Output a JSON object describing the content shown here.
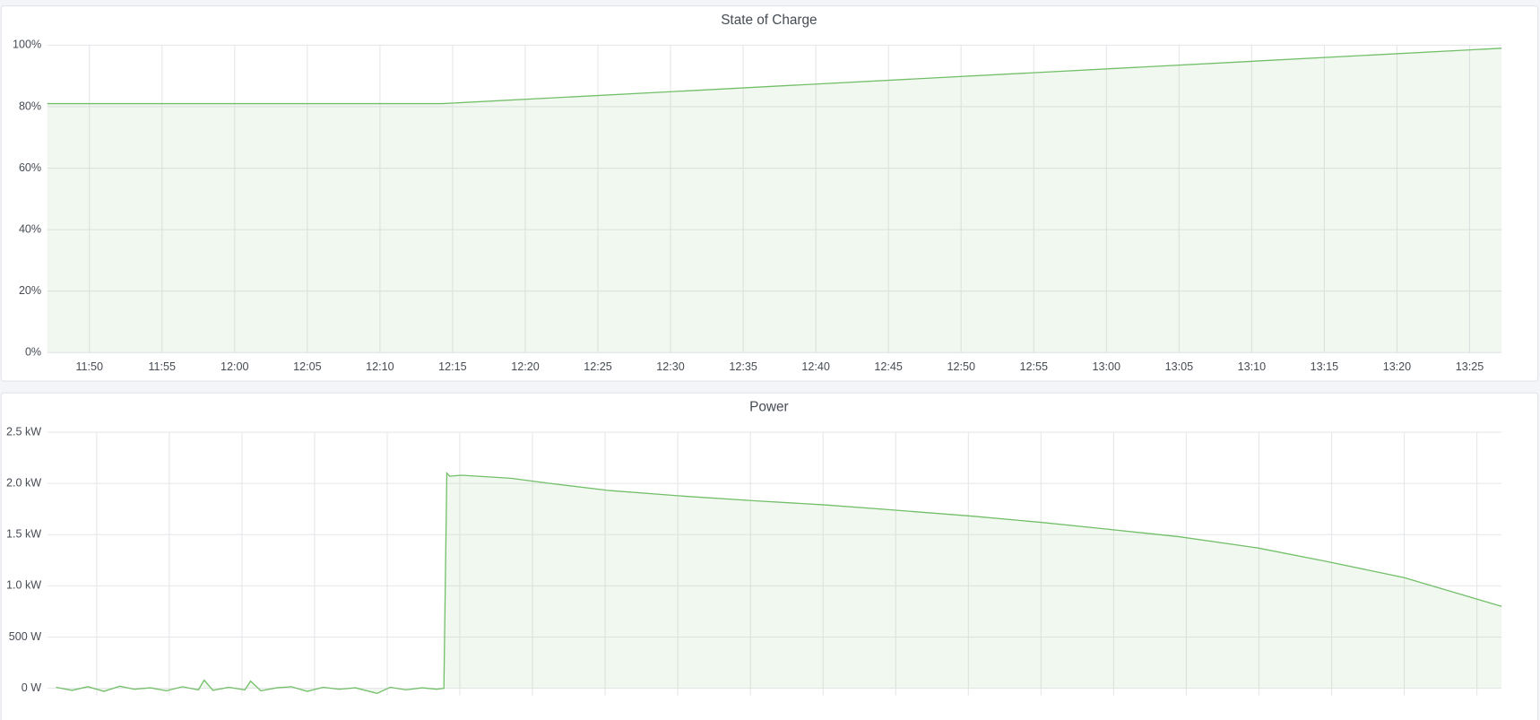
{
  "chart_data": [
    {
      "type": "line",
      "title": "State of Charge",
      "x": [
        707.1,
        734.3,
        807.2
      ],
      "series": [
        {
          "color": "#73bf69",
          "values": [
            81,
            81,
            99
          ]
        }
      ],
      "xlim": [
        707.1,
        807.2
      ],
      "xticks": [
        {
          "value": 710,
          "label": "11:50"
        },
        {
          "value": 715,
          "label": "11:55"
        },
        {
          "value": 720,
          "label": "12:00"
        },
        {
          "value": 725,
          "label": "12:05"
        },
        {
          "value": 730,
          "label": "12:10"
        },
        {
          "value": 735,
          "label": "12:15"
        },
        {
          "value": 740,
          "label": "12:20"
        },
        {
          "value": 745,
          "label": "12:25"
        },
        {
          "value": 750,
          "label": "12:30"
        },
        {
          "value": 755,
          "label": "12:35"
        },
        {
          "value": 760,
          "label": "12:40"
        },
        {
          "value": 765,
          "label": "12:45"
        },
        {
          "value": 770,
          "label": "12:50"
        },
        {
          "value": 775,
          "label": "12:55"
        },
        {
          "value": 780,
          "label": "13:00"
        },
        {
          "value": 785,
          "label": "13:05"
        },
        {
          "value": 790,
          "label": "13:10"
        },
        {
          "value": 795,
          "label": "13:15"
        },
        {
          "value": 800,
          "label": "13:20"
        },
        {
          "value": 805,
          "label": "13:25"
        }
      ],
      "ylim": [
        0,
        100
      ],
      "yticks": [
        {
          "value": 0,
          "label": "0%"
        },
        {
          "value": 20,
          "label": "20%"
        },
        {
          "value": 40,
          "label": "40%"
        },
        {
          "value": 60,
          "label": "60%"
        },
        {
          "value": 80,
          "label": "80%"
        },
        {
          "value": 100,
          "label": "100%"
        }
      ],
      "grid": true
    },
    {
      "type": "line",
      "title": "Power",
      "x": [
        707.2,
        708.3,
        709.4,
        710.5,
        711.6,
        712.6,
        713.7,
        714.8,
        715.9,
        717.0,
        717.4,
        718.0,
        719.1,
        720.2,
        720.6,
        721.3,
        722.4,
        723.4,
        724.5,
        725.6,
        726.7,
        727.8,
        729.3,
        730.2,
        731.3,
        732.4,
        733.4,
        733.9,
        734.1,
        734.3,
        735.1,
        738.5,
        741.2,
        745.3,
        750.0,
        755.4,
        760.1,
        764.9,
        770.3,
        775.0,
        779.1,
        784.5,
        789.9,
        794.6,
        800.0,
        806.7
      ],
      "series": [
        {
          "color": "#73bf69",
          "values": [
            10,
            -20,
            15,
            -30,
            20,
            -10,
            5,
            -25,
            15,
            -15,
            80,
            -20,
            10,
            -15,
            70,
            -25,
            5,
            15,
            -30,
            10,
            -10,
            5,
            -50,
            10,
            -15,
            5,
            -10,
            0,
            2100,
            2070,
            2080,
            2050,
            2000,
            1930,
            1880,
            1830,
            1790,
            1740,
            1680,
            1620,
            1560,
            1480,
            1370,
            1240,
            1080,
            800
          ]
        }
      ],
      "xlim": [
        706.6,
        806.7
      ],
      "xticks": [
        710,
        715,
        720,
        725,
        730,
        735,
        740,
        745,
        750,
        755,
        760,
        765,
        770,
        775,
        780,
        785,
        790,
        795,
        800,
        805
      ],
      "ylim": [
        -70,
        2500
      ],
      "yticks": [
        {
          "value": 0,
          "label": "0 W"
        },
        {
          "value": 500,
          "label": "500 W"
        },
        {
          "value": 1000,
          "label": "1.0 kW"
        },
        {
          "value": 1500,
          "label": "1.5 kW"
        },
        {
          "value": 2000,
          "label": "2.0 kW"
        },
        {
          "value": 2500,
          "label": "2.5 kW"
        }
      ],
      "grid": true
    }
  ]
}
